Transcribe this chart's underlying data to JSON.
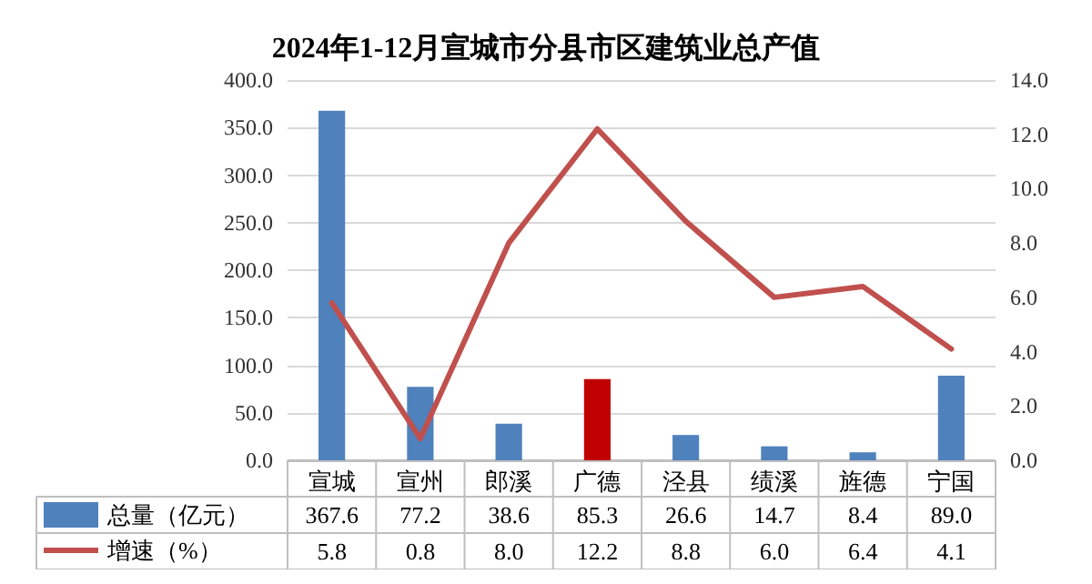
{
  "chart_data": {
    "type": "bar",
    "title": "2024年1-12月宣城市分县市区建筑业总产值",
    "categories": [
      "宣城",
      "宣州",
      "郎溪",
      "广德",
      "泾县",
      "绩溪",
      "旌德",
      "宁国"
    ],
    "series": [
      {
        "name": "总量（亿元）",
        "color": "#4f81bd",
        "colors": [
          "#4f81bd",
          "#4f81bd",
          "#4f81bd",
          "#c00000",
          "#4f81bd",
          "#4f81bd",
          "#4f81bd",
          "#4f81bd"
        ],
        "values": [
          367.6,
          77.2,
          38.6,
          85.3,
          26.6,
          14.7,
          8.4,
          89.0
        ],
        "value_labels": [
          "367.6",
          "77.2",
          "38.6",
          "85.3",
          "26.6",
          "14.7",
          "8.4",
          "89.0"
        ]
      },
      {
        "name": "增速（%）",
        "type": "line",
        "axis": "y2",
        "color": "#c0504d",
        "values": [
          5.8,
          0.8,
          8.0,
          12.2,
          8.8,
          6.0,
          6.4,
          4.1
        ],
        "value_labels": [
          "5.8",
          "0.8",
          "8.0",
          "12.2",
          "8.8",
          "6.0",
          "6.4",
          "4.1"
        ]
      }
    ],
    "ylim": [
      0,
      400
    ],
    "yticks": [
      {
        "value": 0,
        "label": "0.0"
      },
      {
        "value": 50,
        "label": "50.0"
      },
      {
        "value": 100,
        "label": "100.0"
      },
      {
        "value": 150,
        "label": "150.0"
      },
      {
        "value": 200,
        "label": "200.0"
      },
      {
        "value": 250,
        "label": "250.0"
      },
      {
        "value": 300,
        "label": "300.0"
      },
      {
        "value": 350,
        "label": "350.0"
      },
      {
        "value": 400,
        "label": "400.0"
      }
    ],
    "y2lim": [
      0,
      14
    ],
    "y2ticks": [
      {
        "value": 0,
        "label": "0.0"
      },
      {
        "value": 2,
        "label": "2.0"
      },
      {
        "value": 4,
        "label": "4.0"
      },
      {
        "value": 6,
        "label": "6.0"
      },
      {
        "value": 8,
        "label": "8.0"
      },
      {
        "value": 10,
        "label": "10.0"
      },
      {
        "value": 12,
        "label": "12.0"
      },
      {
        "value": 14,
        "label": "14.0"
      }
    ],
    "grid": "y",
    "legend": "bottom left",
    "marker": "none",
    "line_style": "solid"
  }
}
